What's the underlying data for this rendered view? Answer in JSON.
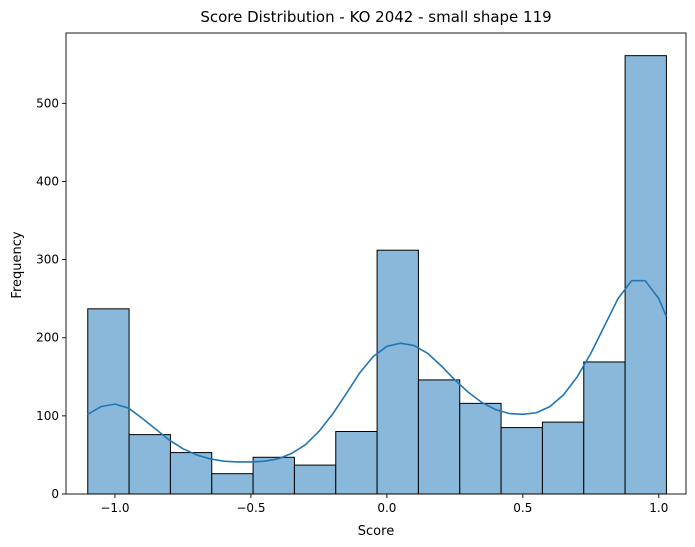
{
  "chart_data": {
    "type": "bar",
    "title": "Score Distribution - KO 2042 - small shape 119",
    "xlabel": "Score",
    "ylabel": "Frequency",
    "xlim": [
      -1.18,
      1.1
    ],
    "ylim": [
      0,
      590
    ],
    "xticks": [
      -1.0,
      -0.5,
      0.0,
      0.5,
      1.0
    ],
    "xtick_labels": [
      "−1.0",
      "−0.5",
      "0.0",
      "0.5",
      "1.0"
    ],
    "yticks": [
      0,
      100,
      200,
      300,
      400,
      500
    ],
    "ytick_labels": [
      "0",
      "100",
      "200",
      "300",
      "400",
      "500"
    ],
    "bins": {
      "edges": [
        -1.1,
        -0.948,
        -0.796,
        -0.644,
        -0.492,
        -0.34,
        -0.188,
        -0.036,
        0.116,
        0.268,
        0.42,
        0.572,
        0.724,
        0.876,
        1.028
      ],
      "values": [
        237,
        76,
        53,
        26,
        47,
        37,
        80,
        312,
        146,
        116,
        85,
        92,
        169,
        561
      ]
    },
    "kde_line": {
      "x": [
        -1.1,
        -1.05,
        -1.0,
        -0.95,
        -0.9,
        -0.85,
        -0.8,
        -0.75,
        -0.7,
        -0.65,
        -0.6,
        -0.55,
        -0.5,
        -0.45,
        -0.4,
        -0.35,
        -0.3,
        -0.25,
        -0.2,
        -0.15,
        -0.1,
        -0.05,
        0.0,
        0.05,
        0.1,
        0.15,
        0.2,
        0.25,
        0.3,
        0.35,
        0.4,
        0.45,
        0.5,
        0.55,
        0.6,
        0.65,
        0.7,
        0.75,
        0.8,
        0.85,
        0.9,
        0.95,
        1.0,
        1.028
      ],
      "y": [
        102,
        112,
        115,
        110,
        97,
        83,
        69,
        58,
        50,
        45,
        42,
        41,
        41,
        42,
        45,
        52,
        63,
        80,
        102,
        128,
        155,
        176,
        189,
        193,
        190,
        180,
        164,
        146,
        130,
        117,
        108,
        103,
        102,
        104,
        112,
        127,
        150,
        180,
        215,
        250,
        273,
        273,
        250,
        227
      ]
    },
    "colors": {
      "bar_fill": "#89b8da",
      "bar_edge": "#000000",
      "kde_line": "#1f77b4",
      "axis": "#000000"
    },
    "grid": false
  }
}
